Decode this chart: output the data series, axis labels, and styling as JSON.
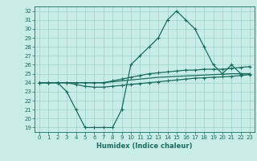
{
  "title": "",
  "xlabel": "Humidex (Indice chaleur)",
  "bg_color": "#c8ede9",
  "grid_color": "#9ecfca",
  "line_color": "#1b6b5f",
  "xlim": [
    -0.5,
    23.5
  ],
  "ylim": [
    18.5,
    32.5
  ],
  "xticks": [
    0,
    1,
    2,
    3,
    4,
    5,
    6,
    7,
    8,
    9,
    10,
    11,
    12,
    13,
    14,
    15,
    16,
    17,
    18,
    19,
    20,
    21,
    22,
    23
  ],
  "yticks": [
    19,
    20,
    21,
    22,
    23,
    24,
    25,
    26,
    27,
    28,
    29,
    30,
    31,
    32
  ],
  "humidex": [
    24,
    24,
    24,
    23,
    21,
    19,
    19,
    19,
    19,
    21,
    26,
    27,
    28,
    29,
    31,
    32,
    31,
    30,
    28,
    26,
    25,
    26,
    25,
    25
  ],
  "trend_upper": [
    24,
    24,
    24,
    24,
    24,
    24,
    24,
    24,
    24.2,
    24.4,
    24.6,
    24.8,
    25.0,
    25.1,
    25.2,
    25.3,
    25.4,
    25.4,
    25.5,
    25.5,
    25.5,
    25.6,
    25.7,
    25.8
  ],
  "trend_mid": [
    24,
    24,
    24,
    24,
    24,
    24,
    24,
    24,
    24.1,
    24.2,
    24.3,
    24.4,
    24.5,
    24.6,
    24.65,
    24.7,
    24.75,
    24.8,
    24.85,
    24.9,
    24.95,
    25.0,
    25.0,
    25.0
  ],
  "trend_lower": [
    24,
    24,
    24,
    24,
    23.8,
    23.6,
    23.5,
    23.5,
    23.6,
    23.7,
    23.8,
    23.9,
    24.0,
    24.1,
    24.2,
    24.3,
    24.4,
    24.5,
    24.55,
    24.6,
    24.65,
    24.7,
    24.8,
    24.9
  ]
}
